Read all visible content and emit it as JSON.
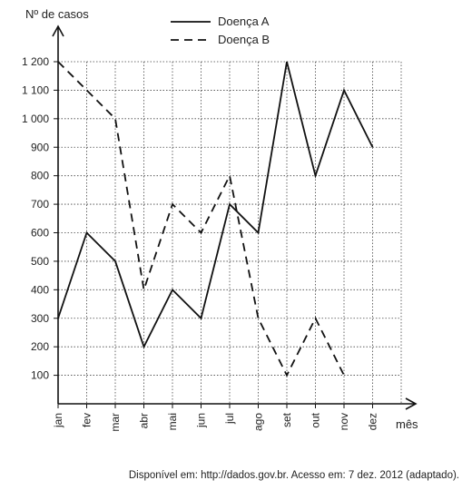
{
  "chart_data": {
    "type": "line",
    "ylabel": "Nº de casos",
    "xlabel": "mês",
    "categories": [
      "jan",
      "fev",
      "mar",
      "abr",
      "mai",
      "jun",
      "jul",
      "ago",
      "set",
      "out",
      "nov",
      "dez"
    ],
    "y_ticks": [
      100,
      200,
      300,
      400,
      500,
      600,
      700,
      800,
      900,
      1000,
      1100,
      1200
    ],
    "y_tick_labels": [
      "100",
      "200",
      "300",
      "400",
      "500",
      "600",
      "700",
      "800",
      "900",
      "1 000",
      "1 100",
      "1 200"
    ],
    "ylim": [
      0,
      1250
    ],
    "grid": true,
    "legend_position": "top-center",
    "series": [
      {
        "name": "Doença A",
        "style": "solid",
        "values": [
          300,
          600,
          500,
          200,
          400,
          300,
          700,
          600,
          1200,
          800,
          1100,
          900
        ]
      },
      {
        "name": "Doença B",
        "style": "dashed",
        "values": [
          1200,
          1100,
          1000,
          400,
          700,
          600,
          800,
          300,
          100,
          300,
          100,
          null
        ]
      }
    ]
  },
  "source_text": "Disponível em: http://dados.gov.br. Acesso em: 7 dez. 2012 (adaptado)."
}
